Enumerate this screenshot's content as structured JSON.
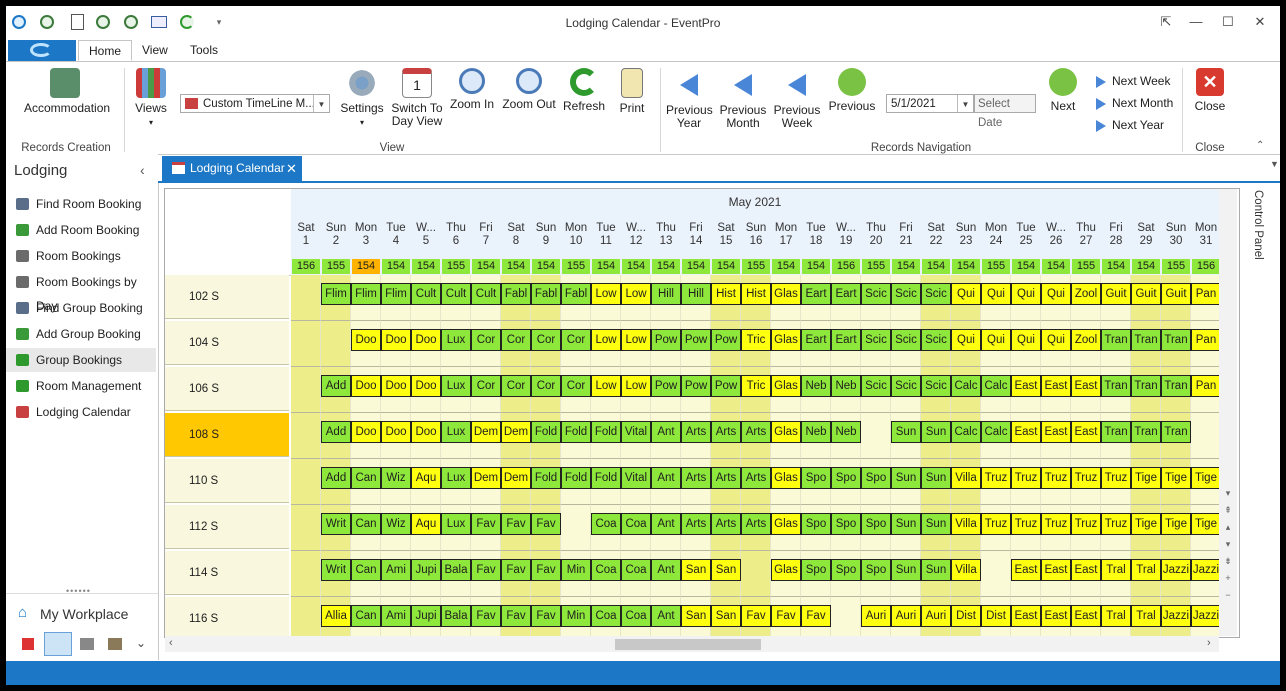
{
  "window": {
    "title": "Lodging Calendar - EventPro"
  },
  "menu_tabs": [
    "Home",
    "View",
    "Tools"
  ],
  "ribbon": {
    "records_creation": {
      "accommodation": "Accommodation",
      "group": "Records Creation"
    },
    "view": {
      "views": "Views",
      "timeline_combo": "Custom TimeLine M...",
      "settings": "Settings",
      "switch_to_day_line1": "Switch To",
      "switch_to_day_line2": "Day View",
      "zoom_in": "Zoom In",
      "zoom_out": "Zoom Out",
      "refresh": "Refresh",
      "print": "Print",
      "group": "View"
    },
    "navigation": {
      "prev_year_1": "Previous",
      "prev_year_2": "Year",
      "prev_month_1": "Previous",
      "prev_month_2": "Month",
      "prev_week_1": "Previous",
      "prev_week_2": "Week",
      "previous": "Previous",
      "date_value": "5/1/2021",
      "select_date": "Select Date",
      "next": "Next",
      "next_week": "Next Week",
      "next_month": "Next Month",
      "next_year": "Next Year",
      "group": "Records Navigation"
    },
    "close": {
      "close": "Close",
      "group": "Close"
    }
  },
  "sidebar": {
    "header": "Lodging",
    "items": [
      {
        "label": "Find Room Booking",
        "color": "#5a6e8a"
      },
      {
        "label": "Add Room Booking",
        "color": "#3a9a3a"
      },
      {
        "label": "Room Bookings",
        "color": "#6b6b6b"
      },
      {
        "label": "Room Bookings by Day",
        "color": "#6b6b6b"
      },
      {
        "label": "Find Group Booking",
        "color": "#5a6e8a"
      },
      {
        "label": "Add Group Booking",
        "color": "#3a9a3a"
      },
      {
        "label": "Group Bookings",
        "color": "#2e9a2e"
      },
      {
        "label": "Room Management",
        "color": "#2e9a2e"
      },
      {
        "label": "Lodging Calendar",
        "color": "#c84040"
      }
    ],
    "workplace": "My Workplace"
  },
  "doc_tab": {
    "label": "Lodging Calendar"
  },
  "control_panel": "Control Panel",
  "calendar": {
    "month": "May 2021",
    "days": [
      {
        "dow": "Sat",
        "d": "1",
        "c": "156"
      },
      {
        "dow": "Sun",
        "d": "2",
        "c": "155"
      },
      {
        "dow": "Mon",
        "d": "3",
        "c": "154"
      },
      {
        "dow": "Tue",
        "d": "4",
        "c": "154"
      },
      {
        "dow": "W...",
        "d": "5",
        "c": "154"
      },
      {
        "dow": "Thu",
        "d": "6",
        "c": "155"
      },
      {
        "dow": "Fri",
        "d": "7",
        "c": "154"
      },
      {
        "dow": "Sat",
        "d": "8",
        "c": "154"
      },
      {
        "dow": "Sun",
        "d": "9",
        "c": "154"
      },
      {
        "dow": "Mon",
        "d": "10",
        "c": "155"
      },
      {
        "dow": "Tue",
        "d": "11",
        "c": "154"
      },
      {
        "dow": "W...",
        "d": "12",
        "c": "154"
      },
      {
        "dow": "Thu",
        "d": "13",
        "c": "154"
      },
      {
        "dow": "Fri",
        "d": "14",
        "c": "154"
      },
      {
        "dow": "Sat",
        "d": "15",
        "c": "154"
      },
      {
        "dow": "Sun",
        "d": "16",
        "c": "155"
      },
      {
        "dow": "Mon",
        "d": "17",
        "c": "154"
      },
      {
        "dow": "Tue",
        "d": "18",
        "c": "154"
      },
      {
        "dow": "W...",
        "d": "19",
        "c": "156"
      },
      {
        "dow": "Thu",
        "d": "20",
        "c": "155"
      },
      {
        "dow": "Fri",
        "d": "21",
        "c": "154"
      },
      {
        "dow": "Sat",
        "d": "22",
        "c": "154"
      },
      {
        "dow": "Sun",
        "d": "23",
        "c": "154"
      },
      {
        "dow": "Mon",
        "d": "24",
        "c": "155"
      },
      {
        "dow": "Tue",
        "d": "25",
        "c": "154"
      },
      {
        "dow": "W...",
        "d": "26",
        "c": "154"
      },
      {
        "dow": "Thu",
        "d": "27",
        "c": "155"
      },
      {
        "dow": "Fri",
        "d": "28",
        "c": "154"
      },
      {
        "dow": "Sat",
        "d": "29",
        "c": "154"
      },
      {
        "dow": "Sun",
        "d": "30",
        "c": "155"
      },
      {
        "dow": "Mon",
        "d": "31",
        "c": "156"
      }
    ],
    "highlight_day_index": 2,
    "rooms": [
      {
        "name": "102 S",
        "cells": [
          "",
          "Flim:g",
          "Flim:g",
          "Flim:g",
          "Cult:g",
          "Cult:g",
          "Cult:g",
          "Fabl:g",
          "Fabl:g",
          "Fabl:g",
          "Low:y",
          "Low:y",
          "Hill:g",
          "Hill:g",
          "Hist:y",
          "Hist:y",
          "Glas:y",
          "Eart:g",
          "Eart:g",
          "Scic:g",
          "Scic:g",
          "Scic:g",
          "Qui:y",
          "Qui:y",
          "Qui:y",
          "Qui:y",
          "Zool:y",
          "Guit:y",
          "Guit:y",
          "Guit:y",
          "Pan:y"
        ]
      },
      {
        "name": "104 S",
        "cells": [
          "",
          "",
          "Doo:y",
          "Doo:y",
          "Doo:y",
          "Lux:g",
          "Cor:g",
          "Cor:g",
          "Cor:g",
          "Cor:g",
          "Low:y",
          "Low:y",
          "Pow:g",
          "Pow:g",
          "Pow:g",
          "Tric:y",
          "Glas:y",
          "Eart:g",
          "Eart:g",
          "Scic:g",
          "Scic:g",
          "Scic:g",
          "Qui:y",
          "Qui:y",
          "Qui:y",
          "Qui:y",
          "Zool:y",
          "Tran:g",
          "Tran:g",
          "Tran:g",
          "Pan:y"
        ]
      },
      {
        "name": "106 S",
        "cells": [
          "",
          "Add:g",
          "Doo:y",
          "Doo:y",
          "Doo:y",
          "Lux:g",
          "Cor:g",
          "Cor:g",
          "Cor:g",
          "Cor:g",
          "Low:y",
          "Low:y",
          "Pow:g",
          "Pow:g",
          "Pow:g",
          "Tric:y",
          "Glas:y",
          "Neb:g",
          "Neb:g",
          "Scic:g",
          "Scic:g",
          "Scic:g",
          "Calc:g",
          "Calc:g",
          "East:y",
          "East:y",
          "East:y",
          "Tran:g",
          "Tran:g",
          "Tran:g",
          "Pan:y"
        ]
      },
      {
        "name": "108 S",
        "cells": [
          "",
          "Add:g",
          "Doo:y",
          "Doo:y",
          "Doo:y",
          "Lux:g",
          "Dem:y",
          "Dem:y",
          "Fold:g",
          "Fold:g",
          "Fold:g",
          "Vital:g",
          "Ant:g",
          "Arts:g",
          "Arts:g",
          "Arts:g",
          "Glas:y",
          "Neb:g",
          "Neb:g",
          "",
          "Sun:g",
          "Sun:g",
          "Calc:g",
          "Calc:g",
          "East:y",
          "East:y",
          "East:y",
          "Tran:g",
          "Tran:g",
          "Tran:g",
          ""
        ]
      },
      {
        "name": "110 S",
        "cells": [
          "",
          "Add:g",
          "Can:g",
          "Wiz:g",
          "Aqu:y",
          "Lux:g",
          "Dem:y",
          "Dem:y",
          "Fold:g",
          "Fold:g",
          "Fold:g",
          "Vital:g",
          "Ant:g",
          "Arts:g",
          "Arts:g",
          "Arts:g",
          "Glas:y",
          "Spo:g",
          "Spo:g",
          "Spo:g",
          "Sun:g",
          "Sun:g",
          "Villa:y",
          "Truz:y",
          "Truz:y",
          "Truz:y",
          "Truz:y",
          "Truz:y",
          "Tige:y",
          "Tige:y",
          "Tige:y"
        ]
      },
      {
        "name": "112 S",
        "cells": [
          "",
          "Writ:g",
          "Can:g",
          "Wiz:g",
          "Aqu:y",
          "Lux:g",
          "Fav:g",
          "Fav:g",
          "Fav:g",
          "",
          "Coa:g",
          "Coa:g",
          "Ant:g",
          "Arts:g",
          "Arts:g",
          "Arts:g",
          "Glas:y",
          "Spo:g",
          "Spo:g",
          "Spo:g",
          "Sun:g",
          "Sun:g",
          "Villa:y",
          "Truz:y",
          "Truz:y",
          "Truz:y",
          "Truz:y",
          "Truz:y",
          "Tige:y",
          "Tige:y",
          "Tige:y"
        ]
      },
      {
        "name": "114 S",
        "cells": [
          "",
          "Writ:g",
          "Can:g",
          "Ami:g",
          "Jupi:g",
          "Bala:g",
          "Fav:g",
          "Fav:g",
          "Fav:g",
          "Min:g",
          "Coa:g",
          "Coa:g",
          "Ant:g",
          "San:y",
          "San:y",
          "",
          "Glas:y",
          "Spo:g",
          "Spo:g",
          "Spo:g",
          "Sun:g",
          "Sun:g",
          "Villa:y",
          "",
          "East:y",
          "East:y",
          "East:y",
          "Tral:y",
          "Tral:y",
          "Jazzi:y",
          "Jazzi:y"
        ]
      },
      {
        "name": "116 S",
        "cells": [
          "",
          "Allia:y",
          "Can:g",
          "Ami:g",
          "Jupi:g",
          "Bala:g",
          "Fav:g",
          "Fav:g",
          "Fav:g",
          "Min:g",
          "Coa:g",
          "Coa:g",
          "Ant:g",
          "San:y",
          "San:y",
          "Fav:y",
          "Fav:y",
          "Fav:y",
          "",
          "Auri:y",
          "Auri:y",
          "Auri:y",
          "Dist:y",
          "Dist:y",
          "East:y",
          "East:y",
          "East:y",
          "Tral:y",
          "Tral:y",
          "Jazzi:y",
          "Jazzi:y"
        ]
      }
    ],
    "selected_room_index": 3
  }
}
